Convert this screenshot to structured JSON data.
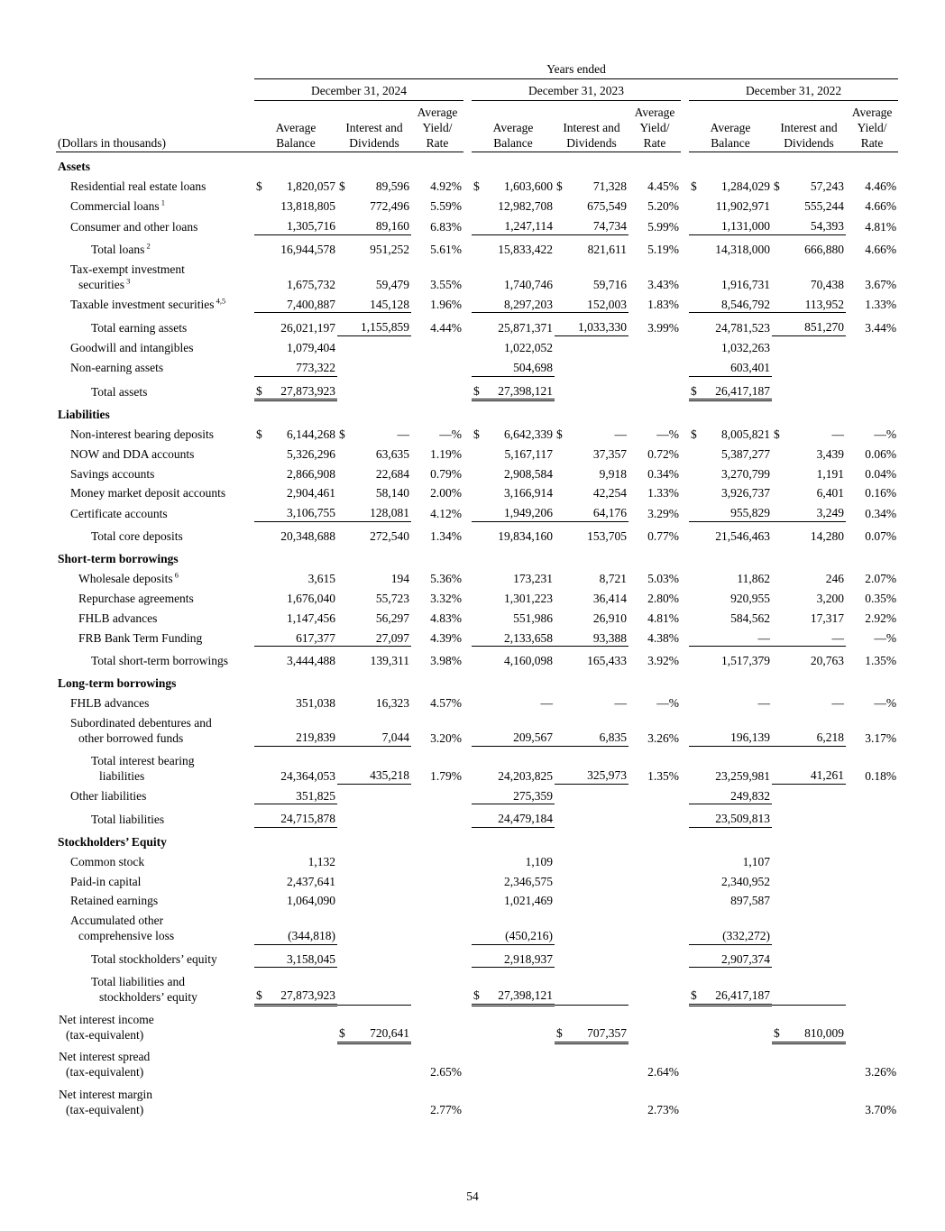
{
  "page": {
    "number": "54"
  },
  "table": {
    "years_ended": "Years ended",
    "dollars_note": "(Dollars in thousands)",
    "periods": [
      "December 31, 2024",
      "December 31, 2023",
      "December 31, 2022"
    ],
    "columns": [
      "Average Balance",
      "Interest and Dividends",
      "Average Yield/ Rate"
    ],
    "rows": [
      {
        "name": "section-assets",
        "style": "section",
        "lines": [
          "Assets"
        ],
        "cells": [
          "",
          "",
          "",
          "",
          "",
          "",
          "",
          "",
          ""
        ]
      },
      {
        "name": "row-residential-real-estate-loans",
        "style": "item",
        "lines": [
          "Residential real estate loans"
        ],
        "cells": [
          "$ 1,820,057",
          "$ 89,596",
          "4.92%",
          "$ 1,603,600",
          "$ 71,328",
          "4.45%",
          "$ 1,284,029",
          "$ 57,243",
          "4.46%"
        ]
      },
      {
        "name": "row-commercial-loans",
        "style": "item",
        "lines": [
          "Commercial loans"
        ],
        "sup": "1",
        "cells": [
          "13,818,805",
          "772,496",
          "5.59%",
          "12,982,708",
          "675,549",
          "5.20%",
          "11,902,971",
          "555,244",
          "4.66%"
        ]
      },
      {
        "name": "row-consumer-and-other-loans",
        "style": "item",
        "lines": [
          "Consumer and other loans"
        ],
        "cells": [
          "1,305,716",
          "89,160",
          "6.83%",
          "1,247,114",
          "74,734",
          "5.99%",
          "1,131,000",
          "54,393",
          "4.81%"
        ],
        "u": [
          0,
          1,
          3,
          4,
          6,
          7
        ]
      },
      {
        "name": "row-total-loans",
        "style": "total",
        "lines": [
          "Total loans"
        ],
        "sup": "2",
        "cells": [
          "16,944,578",
          "951,252",
          "5.61%",
          "15,833,422",
          "821,611",
          "5.19%",
          "14,318,000",
          "666,880",
          "4.66%"
        ]
      },
      {
        "name": "row-tax-exempt-investment-securities",
        "style": "item",
        "lines": [
          "Tax-exempt investment",
          "securities"
        ],
        "sup": "3",
        "cells": [
          "1,675,732",
          "59,479",
          "3.55%",
          "1,740,746",
          "59,716",
          "3.43%",
          "1,916,731",
          "70,438",
          "3.67%"
        ]
      },
      {
        "name": "row-taxable-investment-securities",
        "style": "item",
        "lines": [
          "Taxable investment securities"
        ],
        "sup": "4,5",
        "cells": [
          "7,400,887",
          "145,128",
          "1.96%",
          "8,297,203",
          "152,003",
          "1.83%",
          "8,546,792",
          "113,952",
          "1.33%"
        ],
        "u": [
          0,
          1,
          3,
          4,
          6,
          7
        ]
      },
      {
        "name": "row-total-earning-assets",
        "style": "total",
        "lines": [
          "Total earning assets"
        ],
        "cells": [
          "26,021,197",
          "1,155,859",
          "4.44%",
          "25,871,371",
          "1,033,330",
          "3.99%",
          "24,781,523",
          "851,270",
          "3.44%"
        ],
        "u": [
          1,
          4,
          7
        ]
      },
      {
        "name": "row-goodwill-and-intangibles",
        "style": "item",
        "lines": [
          "Goodwill and intangibles"
        ],
        "cells": [
          "1,079,404",
          "",
          "",
          "1,022,052",
          "",
          "",
          "1,032,263",
          "",
          ""
        ]
      },
      {
        "name": "row-non-earning-assets",
        "style": "item",
        "lines": [
          "Non-earning assets"
        ],
        "cells": [
          "773,322",
          "",
          "",
          "504,698",
          "",
          "",
          "603,401",
          "",
          ""
        ],
        "u": [
          0,
          3,
          6
        ]
      },
      {
        "name": "row-total-assets",
        "style": "total",
        "lines": [
          "Total assets"
        ],
        "cells": [
          "$ 27,873,923",
          "",
          "",
          "$ 27,398,121",
          "",
          "",
          "$ 26,417,187",
          "",
          ""
        ],
        "uu": [
          0,
          3,
          6
        ]
      },
      {
        "name": "section-liabilities",
        "style": "section",
        "lines": [
          "Liabilities"
        ],
        "cells": [
          "",
          "",
          "",
          "",
          "",
          "",
          "",
          "",
          ""
        ]
      },
      {
        "name": "row-non-interest-bearing-deposits",
        "style": "item",
        "lines": [
          "Non-interest bearing deposits"
        ],
        "cells": [
          "$ 6,144,268",
          "$ —",
          "—%",
          "$ 6,642,339",
          "$ —",
          "—%",
          "$ 8,005,821",
          "$ —",
          "—%"
        ]
      },
      {
        "name": "row-now-and-dda-accounts",
        "style": "item",
        "lines": [
          "NOW and DDA accounts"
        ],
        "cells": [
          "5,326,296",
          "63,635",
          "1.19%",
          "5,167,117",
          "37,357",
          "0.72%",
          "5,387,277",
          "3,439",
          "0.06%"
        ]
      },
      {
        "name": "row-savings-accounts",
        "style": "item",
        "lines": [
          "Savings accounts"
        ],
        "cells": [
          "2,866,908",
          "22,684",
          "0.79%",
          "2,908,584",
          "9,918",
          "0.34%",
          "3,270,799",
          "1,191",
          "0.04%"
        ]
      },
      {
        "name": "row-money-market-deposit-accounts",
        "style": "item",
        "lines": [
          "Money market deposit accounts"
        ],
        "cells": [
          "2,904,461",
          "58,140",
          "2.00%",
          "3,166,914",
          "42,254",
          "1.33%",
          "3,926,737",
          "6,401",
          "0.16%"
        ]
      },
      {
        "name": "row-certificate-accounts",
        "style": "item",
        "lines": [
          "Certificate accounts"
        ],
        "cells": [
          "3,106,755",
          "128,081",
          "4.12%",
          "1,949,206",
          "64,176",
          "3.29%",
          "955,829",
          "3,249",
          "0.34%"
        ],
        "u": [
          0,
          1,
          3,
          4,
          6,
          7
        ]
      },
      {
        "name": "row-total-core-deposits",
        "style": "total",
        "lines": [
          "Total core deposits"
        ],
        "cells": [
          "20,348,688",
          "272,540",
          "1.34%",
          "19,834,160",
          "153,705",
          "0.77%",
          "21,546,463",
          "14,280",
          "0.07%"
        ]
      },
      {
        "name": "section-short-term-borrowings",
        "style": "section",
        "lines": [
          "Short-term borrowings"
        ],
        "cells": [
          "",
          "",
          "",
          "",
          "",
          "",
          "",
          "",
          ""
        ]
      },
      {
        "name": "row-wholesale-deposits",
        "style": "item2",
        "lines": [
          "Wholesale deposits"
        ],
        "sup": "6",
        "cells": [
          "3,615",
          "194",
          "5.36%",
          "173,231",
          "8,721",
          "5.03%",
          "11,862",
          "246",
          "2.07%"
        ]
      },
      {
        "name": "row-repurchase-agreements",
        "style": "item2",
        "lines": [
          "Repurchase agreements"
        ],
        "cells": [
          "1,676,040",
          "55,723",
          "3.32%",
          "1,301,223",
          "36,414",
          "2.80%",
          "920,955",
          "3,200",
          "0.35%"
        ]
      },
      {
        "name": "row-fhlb-advances-short-term",
        "style": "item2",
        "lines": [
          "FHLB advances"
        ],
        "cells": [
          "1,147,456",
          "56,297",
          "4.83%",
          "551,986",
          "26,910",
          "4.81%",
          "584,562",
          "17,317",
          "2.92%"
        ]
      },
      {
        "name": "row-frb-bank-term-funding",
        "style": "item2",
        "lines": [
          "FRB Bank Term Funding"
        ],
        "cells": [
          "617,377",
          "27,097",
          "4.39%",
          "2,133,658",
          "93,388",
          "4.38%",
          "—",
          "—",
          "—%"
        ],
        "u": [
          0,
          1,
          3,
          4,
          6,
          7
        ]
      },
      {
        "name": "row-total-short-term-borrowings",
        "style": "total",
        "lines": [
          "Total short-term borrowings"
        ],
        "cells": [
          "3,444,488",
          "139,311",
          "3.98%",
          "4,160,098",
          "165,433",
          "3.92%",
          "1,517,379",
          "20,763",
          "1.35%"
        ]
      },
      {
        "name": "section-long-term-borrowings",
        "style": "section",
        "lines": [
          "Long-term borrowings"
        ],
        "cells": [
          "",
          "",
          "",
          "",
          "",
          "",
          "",
          "",
          ""
        ]
      },
      {
        "name": "row-fhlb-advances-long-term",
        "style": "item",
        "lines": [
          "FHLB advances"
        ],
        "cells": [
          "351,038",
          "16,323",
          "4.57%",
          "—",
          "—",
          "—%",
          "—",
          "—",
          "—%"
        ]
      },
      {
        "name": "row-subordinated-debentures",
        "style": "item",
        "lines": [
          "Subordinated debentures and",
          "other borrowed funds"
        ],
        "cells": [
          "219,839",
          "7,044",
          "3.20%",
          "209,567",
          "6,835",
          "3.26%",
          "196,139",
          "6,218",
          "3.17%"
        ],
        "u": [
          0,
          1,
          3,
          4,
          6,
          7
        ]
      },
      {
        "name": "row-total-interest-bearing-liabilities",
        "style": "total",
        "lines": [
          "Total interest bearing",
          "liabilities"
        ],
        "cells": [
          "24,364,053",
          "435,218",
          "1.79%",
          "24,203,825",
          "325,973",
          "1.35%",
          "23,259,981",
          "41,261",
          "0.18%"
        ],
        "u": [
          1,
          4,
          7
        ]
      },
      {
        "name": "row-other-liabilities",
        "style": "item",
        "lines": [
          "Other liabilities"
        ],
        "cells": [
          "351,825",
          "",
          "",
          "275,359",
          "",
          "",
          "249,832",
          "",
          ""
        ],
        "u": [
          0,
          3,
          6
        ]
      },
      {
        "name": "row-total-liabilities",
        "style": "total",
        "lines": [
          "Total liabilities"
        ],
        "cells": [
          "24,715,878",
          "",
          "",
          "24,479,184",
          "",
          "",
          "23,509,813",
          "",
          ""
        ],
        "u": [
          0,
          3,
          6
        ]
      },
      {
        "name": "section-stockholders-equity",
        "style": "section",
        "lines": [
          "Stockholders’ Equity"
        ],
        "cells": [
          "",
          "",
          "",
          "",
          "",
          "",
          "",
          "",
          ""
        ]
      },
      {
        "name": "row-common-stock",
        "style": "item",
        "lines": [
          "Common stock"
        ],
        "cells": [
          "1,132",
          "",
          "",
          "1,109",
          "",
          "",
          "1,107",
          "",
          ""
        ]
      },
      {
        "name": "row-paid-in-capital",
        "style": "item",
        "lines": [
          "Paid-in capital"
        ],
        "cells": [
          "2,437,641",
          "",
          "",
          "2,346,575",
          "",
          "",
          "2,340,952",
          "",
          ""
        ]
      },
      {
        "name": "row-retained-earnings",
        "style": "item",
        "lines": [
          "Retained earnings"
        ],
        "cells": [
          "1,064,090",
          "",
          "",
          "1,021,469",
          "",
          "",
          "897,587",
          "",
          ""
        ]
      },
      {
        "name": "row-accumulated-other-comprehensive-loss",
        "style": "item",
        "lines": [
          "Accumulated other",
          "comprehensive loss"
        ],
        "cells": [
          "(344,818)",
          "",
          "",
          "(450,216)",
          "",
          "",
          "(332,272)",
          "",
          ""
        ],
        "u": [
          0,
          3,
          6
        ]
      },
      {
        "name": "row-total-stockholders-equity",
        "style": "total",
        "lines": [
          "Total stockholders’ equity"
        ],
        "cells": [
          "3,158,045",
          "",
          "",
          "2,918,937",
          "",
          "",
          "2,907,374",
          "",
          ""
        ],
        "u": [
          0,
          3,
          6
        ]
      },
      {
        "name": "row-total-liabilities-and-stockholders-equity",
        "style": "total",
        "lines": [
          "Total liabilities and",
          "stockholders’ equity"
        ],
        "cells": [
          "$ 27,873,923",
          "",
          "",
          "$ 27,398,121",
          "",
          "",
          "$ 26,417,187",
          "",
          ""
        ],
        "uu": [
          0,
          3,
          6
        ]
      },
      {
        "name": "row-net-interest-income-tax-equivalent",
        "style": "net",
        "lines": [
          "Net interest income",
          "(tax-equivalent)"
        ],
        "cells": [
          "",
          "$ 720,641",
          "",
          "",
          "$ 707,357",
          "",
          "",
          "$ 810,009",
          ""
        ],
        "t": [
          1,
          4,
          7
        ],
        "uu": [
          1,
          4,
          7
        ]
      },
      {
        "name": "row-net-interest-spread-tax-equivalent",
        "style": "net",
        "lines": [
          "Net interest spread",
          "(tax-equivalent)"
        ],
        "cells": [
          "",
          "",
          "2.65%",
          "",
          "",
          "2.64%",
          "",
          "",
          "3.26%"
        ]
      },
      {
        "name": "row-net-interest-margin-tax-equivalent",
        "style": "net",
        "lines": [
          "Net interest margin",
          "(tax-equivalent)"
        ],
        "cells": [
          "",
          "",
          "2.77%",
          "",
          "",
          "2.73%",
          "",
          "",
          "3.70%"
        ]
      }
    ]
  }
}
